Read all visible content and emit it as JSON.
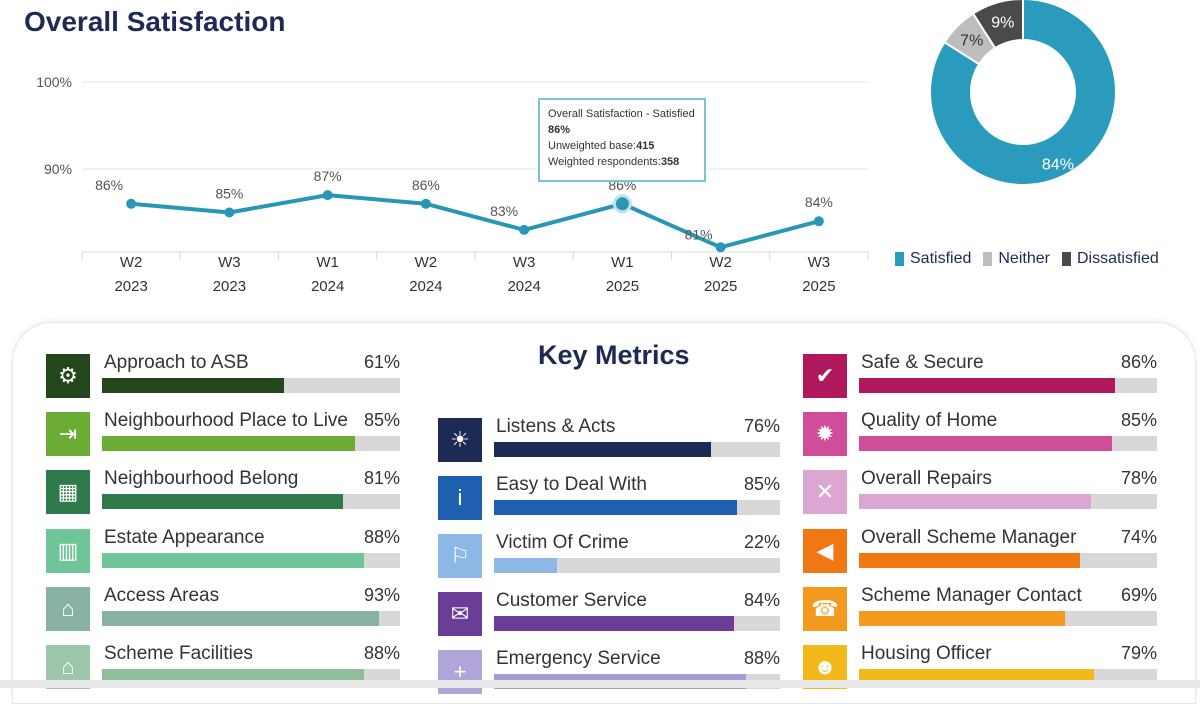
{
  "title": "Overall Satisfaction",
  "chart_data": [
    {
      "type": "line",
      "categories": [
        "W2\n2023",
        "W3\n2023",
        "W1\n2024",
        "W2\n2024",
        "W3\n2024",
        "W1\n2025",
        "W2\n2025",
        "W3\n2025"
      ],
      "cat_line1": [
        "W2",
        "W3",
        "W1",
        "W2",
        "W3",
        "W1",
        "W2",
        "W3"
      ],
      "cat_line2": [
        "2023",
        "2023",
        "2024",
        "2024",
        "2024",
        "2025",
        "2025",
        "2025"
      ],
      "series": [
        {
          "values": [
            86,
            85,
            87,
            86,
            83,
            86,
            81,
            84
          ]
        }
      ],
      "data_labels": [
        "86%",
        "85%",
        "87%",
        "86%",
        "83%",
        "86%",
        "81%",
        "84%"
      ],
      "yticks": [
        "100%",
        "90%"
      ],
      "ylim": [
        80,
        100
      ],
      "line_color": "#2896b5",
      "tooltip": {
        "title": "Overall Satisfaction - Satisfied",
        "value": "86%",
        "base_label": "Unweighted base:",
        "base_value": "415",
        "weighted_label": "Weighted respondents:",
        "weighted_value": "358"
      }
    },
    {
      "type": "pie",
      "donut": true,
      "labels": [
        "Satisfied",
        "Neither",
        "Dissatisfied"
      ],
      "values": [
        84,
        7,
        9
      ],
      "value_labels": [
        "84%",
        "7%",
        "9%"
      ],
      "colors": [
        "#2b9bbd",
        "#bdbdbd",
        "#4a4a4a"
      ],
      "legend": "bottom"
    },
    {
      "type": "bar",
      "title": "Key Metrics",
      "columns": [
        [
          {
            "name": "Approach to ASB",
            "value": 61,
            "label": "61%",
            "color": "#24461c",
            "icon": "asb-icon",
            "icon_bg": "#24461c",
            "glyph": "⚙"
          },
          {
            "name": "Neighbourhood Place to Live",
            "value": 85,
            "label": "85%",
            "color": "#6aac34",
            "icon": "door-exit-icon",
            "icon_bg": "#6aac34",
            "glyph": "⇥"
          },
          {
            "name": "Neighbourhood Belong",
            "value": 81,
            "label": "81%",
            "color": "#2e7a4a",
            "icon": "building-icon",
            "icon_bg": "#2e7a4a",
            "glyph": "▦"
          },
          {
            "name": "Estate Appearance",
            "value": 88,
            "label": "88%",
            "color": "#6fc49a",
            "icon": "city-icon",
            "icon_bg": "#6fc49a",
            "glyph": "▥"
          },
          {
            "name": "Access Areas",
            "value": 93,
            "label": "93%",
            "color": "#88b3a4",
            "icon": "home-icon",
            "icon_bg": "#88b3a4",
            "glyph": "⌂"
          },
          {
            "name": "Scheme Facilities",
            "value": 88,
            "label": "88%",
            "color": "#8fbf9a",
            "icon": "home-plus-icon",
            "icon_bg": "#9cc7aa",
            "glyph": "⌂"
          }
        ],
        [
          {
            "name": "Listens & Acts",
            "value": 76,
            "label": "76%",
            "color": "#1c2a55",
            "icon": "lightbulb-icon",
            "icon_bg": "#1c2a55",
            "glyph": "☀"
          },
          {
            "name": "Easy to Deal With",
            "value": 85,
            "label": "85%",
            "color": "#1f5fb0",
            "icon": "info-icon",
            "icon_bg": "#1f5fb0",
            "glyph": "i"
          },
          {
            "name": "Victim Of Crime",
            "value": 22,
            "label": "22%",
            "color": "#8db8e6",
            "icon": "spray-icon",
            "icon_bg": "#8db8e6",
            "glyph": "⚐"
          },
          {
            "name": "Customer Service",
            "value": 84,
            "label": "84%",
            "color": "#6a3d96",
            "icon": "chat-icon",
            "icon_bg": "#6a3d96",
            "glyph": "✉"
          },
          {
            "name": "Emergency Service",
            "value": 88,
            "label": "88%",
            "color": "#a89ad2",
            "icon": "plus-icon",
            "icon_bg": "#b0a4d8",
            "glyph": "+"
          }
        ],
        [
          {
            "name": "Safe & Secure",
            "value": 86,
            "label": "86%",
            "color": "#b0185e",
            "icon": "shield-icon",
            "icon_bg": "#b0185e",
            "glyph": "✔"
          },
          {
            "name": "Quality of Home",
            "value": 85,
            "label": "85%",
            "color": "#cf4d99",
            "icon": "gear-icon",
            "icon_bg": "#cf4d99",
            "glyph": "✹"
          },
          {
            "name": "Overall Repairs",
            "value": 78,
            "label": "78%",
            "color": "#dba7d2",
            "icon": "tools-icon",
            "icon_bg": "#dba7d2",
            "glyph": "✕"
          },
          {
            "name": "Overall Scheme Manager",
            "value": 74,
            "label": "74%",
            "color": "#f07814",
            "icon": "megaphone-icon",
            "icon_bg": "#f07814",
            "glyph": "◀"
          },
          {
            "name": "Scheme Manager Contact",
            "value": 69,
            "label": "69%",
            "color": "#f39a1e",
            "icon": "phone-icon",
            "icon_bg": "#f39a1e",
            "glyph": "☎"
          },
          {
            "name": "Housing Officer",
            "value": 79,
            "label": "79%",
            "color": "#f3b81a",
            "icon": "officer-icon",
            "icon_bg": "#f3b81a",
            "glyph": "☻"
          }
        ]
      ]
    }
  ]
}
